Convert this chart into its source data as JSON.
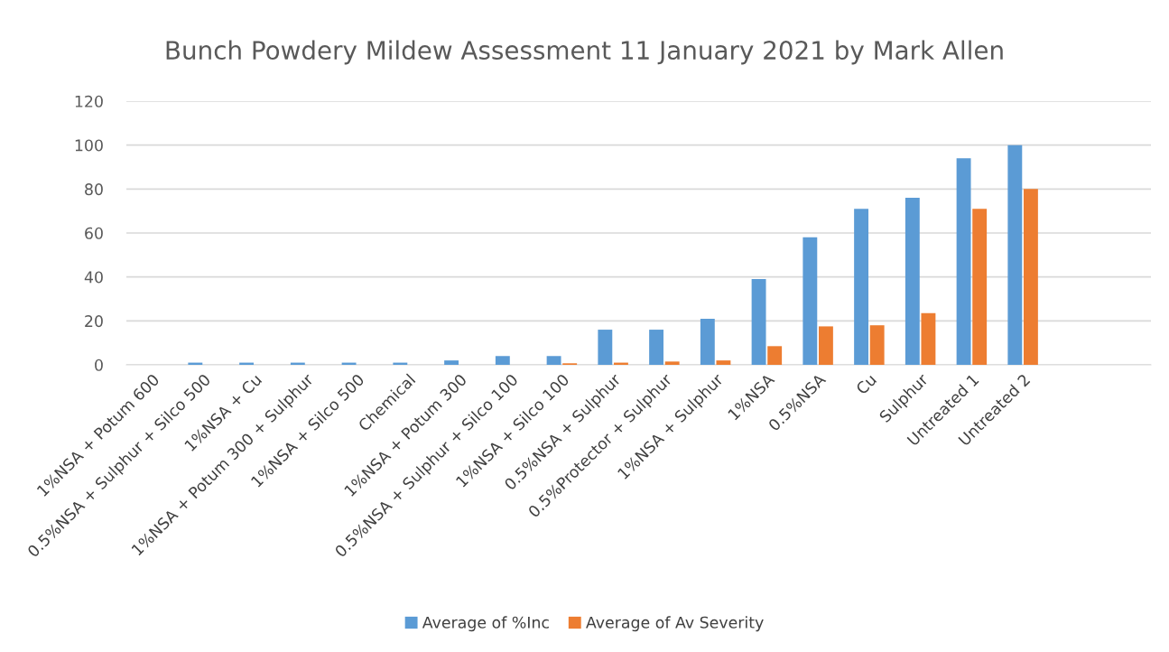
{
  "chart_data": {
    "type": "bar",
    "title": "Bunch Powdery Mildew Assessment 11 January 2021 by Mark Allen",
    "categories": [
      "1%NSA + Potum 600",
      "0.5%NSA + Sulphur + Silco 500",
      "1%NSA + Cu",
      "1%NSA + Potum 300 + Sulphur",
      "1%NSA + Silco 500",
      "Chemical",
      "1%NSA + Potum 300",
      "0.5%NSA + Sulphur + Silco 100",
      "1%NSA + Silco 100",
      "0.5%NSA + Sulphur",
      "0.5%Protector + Sulphur",
      "1%NSA + Sulphur",
      "1%NSA",
      "0.5%NSA",
      "Cu",
      "Sulphur",
      "Untreated 1",
      "Untreated 2",
      null,
      null
    ],
    "series": [
      {
        "name": "Average of %Inc",
        "color": "#5b9bd5",
        "values": [
          0,
          1,
          1,
          1,
          1,
          1,
          2,
          4,
          4,
          16,
          16,
          21,
          39,
          58,
          71,
          76,
          94,
          100,
          null,
          null
        ]
      },
      {
        "name": "Average of Av Severity",
        "color": "#ed7d31",
        "values": [
          0,
          0,
          0,
          0,
          0,
          0,
          0,
          0,
          0.7,
          1,
          1.5,
          2,
          8.5,
          17.5,
          18,
          23.5,
          71,
          80,
          null,
          null
        ]
      }
    ],
    "ylim": [
      0,
      120
    ],
    "yticks": [
      0,
      20,
      40,
      60,
      80,
      100,
      120
    ],
    "grid": "y",
    "legend": "bottom"
  }
}
